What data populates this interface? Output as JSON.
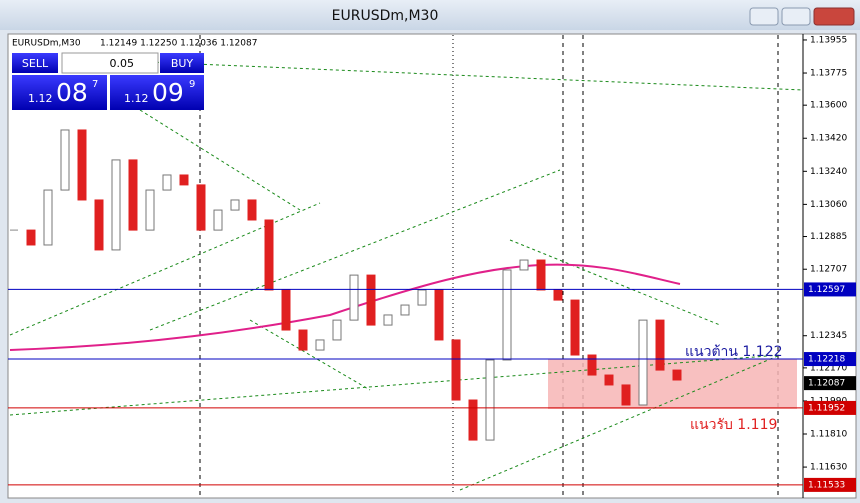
{
  "window": {
    "title": "EURUSDm,M30"
  },
  "chart": {
    "header": {
      "symbol": "EURUSDm,M30",
      "ohlc": "1.12149 1.12250 1.12036 1.12087"
    },
    "trade_panel": {
      "sell": "SELL",
      "lot": "0.05",
      "buy": "BUY",
      "sell_price": {
        "prefix": "1.12",
        "big": "08",
        "small": "7"
      },
      "buy_price": {
        "prefix": "1.12",
        "big": "09",
        "small": "9"
      }
    },
    "ylim": [
      1.11478,
      1.13982
    ],
    "yticks": [
      1.13955,
      1.13775,
      {
        "value": 1.136,
        "label": "1.13600"
      },
      {
        "value": 1.1342,
        "label": "1.13420"
      },
      {
        "value": 1.1324,
        "label": "1.13240"
      },
      {
        "value": 1.1306,
        "label": "1.13060"
      },
      1.12885,
      1.12707,
      1.12345,
      {
        "value": 1.1217,
        "label": "1.12170"
      },
      {
        "value": 1.1199,
        "label": "1.11990"
      },
      {
        "value": 1.1181,
        "label": "1.11810"
      },
      {
        "value": 1.1163,
        "label": "1.11630"
      }
    ],
    "closes": [
      1.1292,
      1.12839,
      1.13138,
      1.13465,
      1.13084,
      1.12812,
      1.13302,
      1.1292,
      1.13138,
      1.1322,
      1.13166,
      1.1292,
      1.13029,
      1.13084,
      1.12975,
      1.12594,
      1.12376,
      1.12267,
      1.12322,
      1.1243,
      1.12675,
      1.12403,
      1.12458,
      1.12512,
      1.12594,
      1.12322,
      1.11995,
      1.11777,
      1.12213,
      1.12703,
      1.12757,
      1.12594,
      1.12539,
      1.1224,
      1.12131,
      1.12077,
      1.11968,
      1.1243,
      1.12158,
      1.12104
    ],
    "price_lines": [
      {
        "value": 1.12597,
        "color": "#0000c0"
      },
      {
        "value": 1.12218,
        "color": "#0000c0"
      },
      {
        "value": 1.11952,
        "color": "#d00000"
      },
      {
        "value": 1.11533,
        "color": "#d00000"
      }
    ],
    "current_price": 1.12087,
    "annotations": [
      {
        "text": "แนวต้าน 1.122",
        "color": "#1a1aa0"
      },
      {
        "text": "แนวรับ 1.119",
        "color": "#e02020"
      }
    ]
  }
}
